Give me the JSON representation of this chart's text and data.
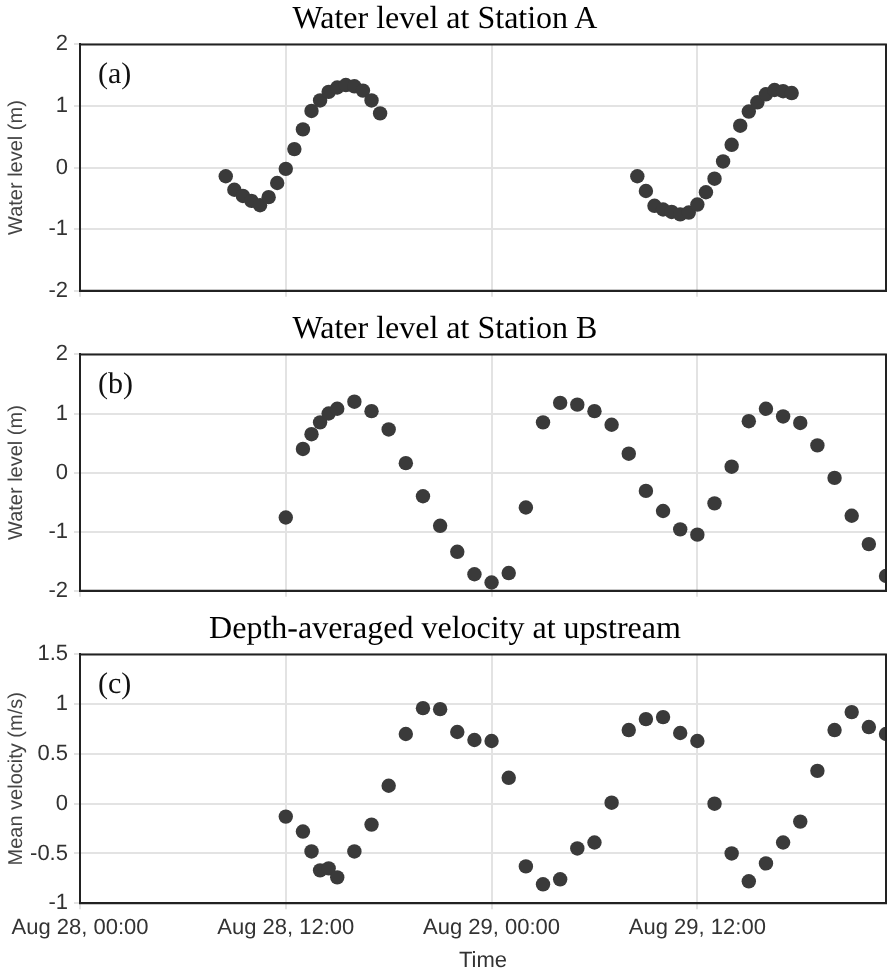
{
  "chart_data": [
    {
      "type": "scatter",
      "title": "Water level at Station A",
      "ylabel": "Water level (m)",
      "annotations": [
        "(a)"
      ],
      "x": [
        "--08-28T08:30",
        "--08-28T09:00",
        "--08-28T09:30",
        "--08-28T10:00",
        "--08-28T10:30",
        "--08-28T11:00",
        "--08-28T11:30",
        "--08-28T12:00",
        "--08-28T12:30",
        "--08-28T13:00",
        "--08-28T13:30",
        "--08-28T14:00",
        "--08-28T14:30",
        "--08-28T15:00",
        "--08-28T15:30",
        "--08-28T16:00",
        "--08-28T16:30",
        "--08-28T17:00",
        "--08-28T17:30",
        "--08-29T08:30",
        "--08-29T09:00",
        "--08-29T09:30",
        "--08-29T10:00",
        "--08-29T10:30",
        "--08-29T11:00",
        "--08-29T11:30",
        "--08-29T12:00",
        "--08-29T12:30",
        "--08-29T13:00",
        "--08-29T13:30",
        "--08-29T14:00",
        "--08-29T14:30",
        "--08-29T15:00",
        "--08-29T15:30",
        "--08-29T16:00",
        "--08-29T16:30",
        "--08-29T17:00",
        "--08-29T17:30"
      ],
      "series": [
        {
          "color": "#3a3a3a",
          "values": [
            -0.14,
            -0.36,
            -0.46,
            -0.54,
            -0.61,
            -0.48,
            -0.25,
            -0.02,
            0.3,
            0.62,
            0.92,
            1.09,
            1.23,
            1.3,
            1.34,
            1.32,
            1.25,
            1.09,
            0.88,
            -0.14,
            -0.38,
            -0.62,
            -0.68,
            -0.72,
            -0.76,
            -0.73,
            -0.6,
            -0.4,
            -0.18,
            0.1,
            0.37,
            0.68,
            0.91,
            1.06,
            1.19,
            1.26,
            1.24,
            1.21
          ]
        }
      ],
      "xlim": [
        "--08-28T00:00",
        "--08-29T23:00"
      ],
      "xticks": [
        {
          "value": "--08-28T00:00",
          "label": null
        },
        {
          "value": "--08-28T12:00",
          "label": null
        },
        {
          "value": "--08-29T00:00",
          "label": null
        },
        {
          "value": "--08-29T12:00",
          "label": null
        }
      ],
      "ylim": [
        -2,
        2
      ],
      "yticks": [
        -2,
        -1,
        0,
        1,
        2
      ],
      "grid": true,
      "marker": "circle",
      "tick_labels": "y"
    },
    {
      "type": "scatter",
      "title": "Water level at Station B",
      "ylabel": "Water level (m)",
      "annotations": [
        "(b)"
      ],
      "x": [
        "--08-28T12:00",
        "--08-28T13:00",
        "--08-28T13:30",
        "--08-28T14:00",
        "--08-28T14:30",
        "--08-28T15:00",
        "--08-28T16:00",
        "--08-28T17:00",
        "--08-28T18:00",
        "--08-28T19:00",
        "--08-28T20:00",
        "--08-28T21:00",
        "--08-28T22:00",
        "--08-28T23:00",
        "--08-29T00:00",
        "--08-29T01:00",
        "--08-29T02:00",
        "--08-29T03:00",
        "--08-29T04:00",
        "--08-29T05:00",
        "--08-29T06:00",
        "--08-29T07:00",
        "--08-29T08:00",
        "--08-29T09:00",
        "--08-29T10:00",
        "--08-29T11:00",
        "--08-29T12:00",
        "--08-29T13:00",
        "--08-29T14:00",
        "--08-29T15:00",
        "--08-29T16:00",
        "--08-29T17:00",
        "--08-29T18:00",
        "--08-29T19:00",
        "--08-29T20:00",
        "--08-29T21:00",
        "--08-29T22:00",
        "--08-29T23:00"
      ],
      "series": [
        {
          "color": "#3a3a3a",
          "values": [
            -0.76,
            0.4,
            0.65,
            0.85,
            1.0,
            1.08,
            1.2,
            1.04,
            0.73,
            0.16,
            -0.4,
            -0.9,
            -1.34,
            -1.72,
            -1.86,
            -1.7,
            -0.59,
            0.85,
            1.18,
            1.15,
            1.04,
            0.81,
            0.32,
            -0.31,
            -0.65,
            -0.96,
            -1.05,
            -0.52,
            0.1,
            0.87,
            1.08,
            0.95,
            0.84,
            0.46,
            -0.09,
            -0.73,
            -1.21,
            -1.75
          ]
        }
      ],
      "xlim": [
        "--08-28T00:00",
        "--08-29T23:00"
      ],
      "xticks": [
        {
          "value": "--08-28T00:00",
          "label": null
        },
        {
          "value": "--08-28T12:00",
          "label": null
        },
        {
          "value": "--08-29T00:00",
          "label": null
        },
        {
          "value": "--08-29T12:00",
          "label": null
        }
      ],
      "ylim": [
        -2,
        2
      ],
      "yticks": [
        -2,
        -1,
        0,
        1,
        2
      ],
      "grid": true,
      "marker": "circle",
      "tick_labels": "y"
    },
    {
      "type": "scatter",
      "title": "Depth-averaged velocity at upstream",
      "xlabel": "Time",
      "ylabel": "Mean velocity (m/s)",
      "annotations": [
        "(c)"
      ],
      "x": [
        "--08-28T12:00",
        "--08-28T13:00",
        "--08-28T13:30",
        "--08-28T14:00",
        "--08-28T14:30",
        "--08-28T15:00",
        "--08-28T16:00",
        "--08-28T17:00",
        "--08-28T18:00",
        "--08-28T19:00",
        "--08-28T20:00",
        "--08-28T21:00",
        "--08-28T22:00",
        "--08-28T23:00",
        "--08-29T00:00",
        "--08-29T01:00",
        "--08-29T02:00",
        "--08-29T03:00",
        "--08-29T04:00",
        "--08-29T05:00",
        "--08-29T06:00",
        "--08-29T07:00",
        "--08-29T08:00",
        "--08-29T09:00",
        "--08-29T10:00",
        "--08-29T11:00",
        "--08-29T12:00",
        "--08-29T13:00",
        "--08-29T14:00",
        "--08-29T15:00",
        "--08-29T16:00",
        "--08-29T17:00",
        "--08-29T18:00",
        "--08-29T19:00",
        "--08-29T20:00",
        "--08-29T21:00",
        "--08-29T22:00",
        "--08-29T23:00"
      ],
      "series": [
        {
          "color": "#3a3a3a",
          "values": [
            -0.13,
            -0.28,
            -0.48,
            -0.67,
            -0.65,
            -0.74,
            -0.48,
            -0.21,
            0.18,
            0.7,
            0.96,
            0.95,
            0.72,
            0.64,
            0.63,
            0.26,
            -0.63,
            -0.81,
            -0.76,
            -0.45,
            -0.39,
            0.01,
            0.74,
            0.85,
            0.87,
            0.71,
            0.63,
            0.0,
            -0.5,
            -0.78,
            -0.6,
            -0.39,
            -0.18,
            0.33,
            0.74,
            0.92,
            0.77,
            0.7
          ]
        }
      ],
      "xlim": [
        "--08-28T00:00",
        "--08-29T23:00"
      ],
      "xticks": [
        {
          "value": "--08-28T00:00",
          "label": "Aug 28, 00:00"
        },
        {
          "value": "--08-28T12:00",
          "label": "Aug 28, 12:00"
        },
        {
          "value": "--08-29T00:00",
          "label": "Aug 29, 00:00"
        },
        {
          "value": "--08-29T12:00",
          "label": "Aug 29, 12:00"
        }
      ],
      "ylim": [
        -1,
        1.5
      ],
      "yticks": [
        -1,
        -0.5,
        0,
        0.5,
        1,
        1.5
      ],
      "grid": true,
      "marker": "circle"
    }
  ]
}
